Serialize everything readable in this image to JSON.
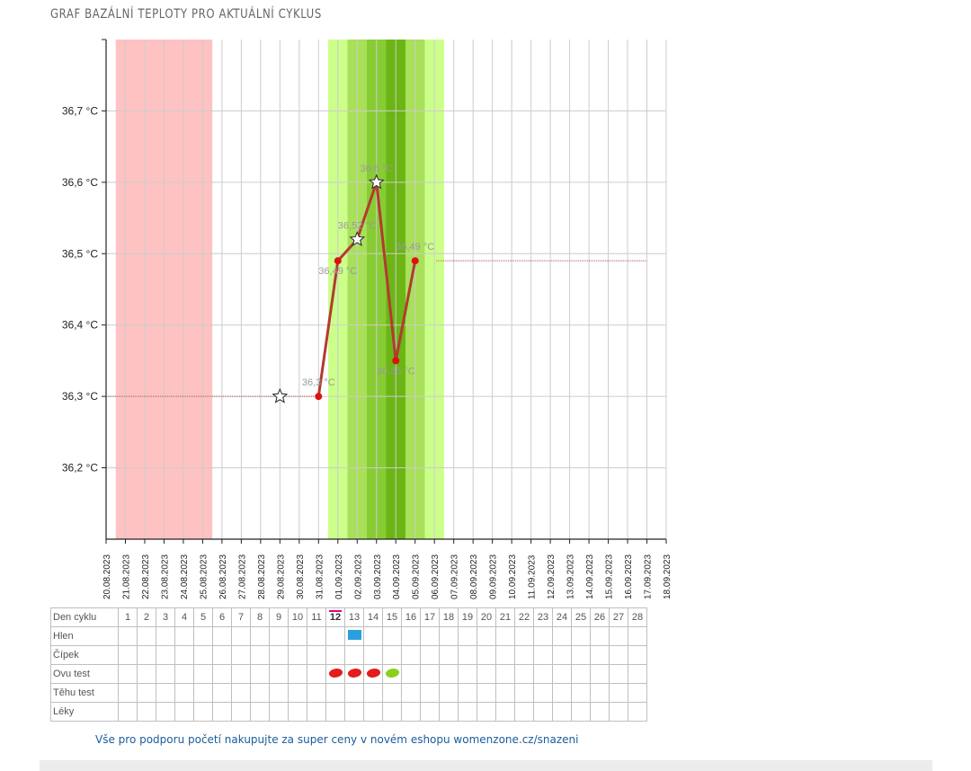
{
  "page": {
    "title": "GRAF BAZÁLNÍ TEPLOTY PRO AKTUÁLNÍ CYKLUS",
    "shop_link": "Vše pro podporu početí nakupujte za super ceny v novém eshopu womenzone.cz/snazeni"
  },
  "chart_data": {
    "type": "line",
    "title": "GRAF BAZÁLNÍ TEPLOTY PRO AKTUÁLNÍ CYKLUS",
    "x_dates": [
      "20.08.2023",
      "21.08.2023",
      "22.08.2023",
      "23.08.2023",
      "24.08.2023",
      "25.08.2023",
      "26.08.2023",
      "27.08.2023",
      "28.08.2023",
      "29.08.2023",
      "30.08.2023",
      "31.08.2023",
      "01.09.2023",
      "02.09.2023",
      "03.09.2023",
      "04.09.2023",
      "05.09.2023",
      "06.09.2023",
      "07.09.2023",
      "08.09.2023",
      "09.09.2023",
      "10.09.2023",
      "11.09.2023",
      "12.09.2023",
      "13.09.2023",
      "14.09.2023",
      "15.09.2023",
      "16.09.2023",
      "17.09.2023",
      "18.09.2023"
    ],
    "y_ticks": [
      "36,2 °C",
      "36,3 °C",
      "36,4 °C",
      "36,5 °C",
      "36,6 °C",
      "36,7 °C"
    ],
    "y_tick_values": [
      36.2,
      36.3,
      36.4,
      36.5,
      36.6,
      36.7
    ],
    "ylim": [
      36.1,
      36.8
    ],
    "bands": [
      {
        "from": "21.08.2023",
        "to": "25.08.2023",
        "kind": "period",
        "color": "#ffc2c2"
      },
      {
        "from": "01.09.2023",
        "to": "06.09.2023",
        "kind": "fertile",
        "color": "#ccff8a"
      },
      {
        "from": "02.09.2023",
        "to": "05.09.2023",
        "kind": "fertile-high",
        "color": "#a8e05a"
      },
      {
        "from": "03.09.2023",
        "to": "04.09.2023",
        "kind": "fertile-peak",
        "color": "#88cc33"
      },
      {
        "from": "04.09.2023",
        "to": "04.09.2023",
        "kind": "ovulation",
        "color": "#6bb514"
      }
    ],
    "cover_lines": [
      {
        "x_from": "20.08.2023",
        "x_to": "31.08.2023",
        "y": 36.3
      },
      {
        "x_from": "06.09.2023",
        "x_to": "17.09.2023",
        "y": 36.49
      }
    ],
    "points": [
      {
        "x": "31.08.2023",
        "y": 36.3,
        "label": "36,3 °C",
        "marker": "dot",
        "label_pos": "above"
      },
      {
        "x": "01.09.2023",
        "y": 36.49,
        "label": "36,49 °C",
        "marker": "dot",
        "label_pos": "below"
      },
      {
        "x": "02.09.2023",
        "y": 36.52,
        "label": "36,52 °C",
        "marker": "star",
        "label_pos": "above"
      },
      {
        "x": "03.09.2023",
        "y": 36.6,
        "label": "36,6 °C",
        "marker": "star",
        "label_pos": "above"
      },
      {
        "x": "04.09.2023",
        "y": 36.35,
        "label": "36,35 °C",
        "marker": "dot",
        "label_pos": "below"
      },
      {
        "x": "05.09.2023",
        "y": 36.49,
        "label": "36,49 °C",
        "marker": "dot",
        "label_pos": "above"
      }
    ],
    "extra_markers": [
      {
        "x": "29.08.2023",
        "y": 36.3,
        "marker": "star"
      }
    ],
    "colors": {
      "line": "#b33a32",
      "dot": "#dd1111",
      "cover": "#c76a6a",
      "grid": "#cccccc"
    }
  },
  "table": {
    "row_labels": [
      "Den cyklu",
      "Hlen",
      "Čípek",
      "Ovu test",
      "Těhu test",
      "Léky"
    ],
    "days": [
      "1",
      "2",
      "3",
      "4",
      "5",
      "6",
      "7",
      "8",
      "9",
      "10",
      "11",
      "12",
      "13",
      "14",
      "15",
      "16",
      "17",
      "18",
      "19",
      "20",
      "21",
      "22",
      "23",
      "24",
      "25",
      "26",
      "27",
      "28"
    ],
    "today_day": "12",
    "mucus_days": [
      "13"
    ],
    "ovu_tests": [
      {
        "day": "12",
        "result": "positive",
        "color": "#e41b1b"
      },
      {
        "day": "13",
        "result": "positive",
        "color": "#e41b1b"
      },
      {
        "day": "14",
        "result": "positive",
        "color": "#e41b1b"
      },
      {
        "day": "15",
        "result": "negative",
        "color": "#8ccf1e"
      }
    ]
  }
}
